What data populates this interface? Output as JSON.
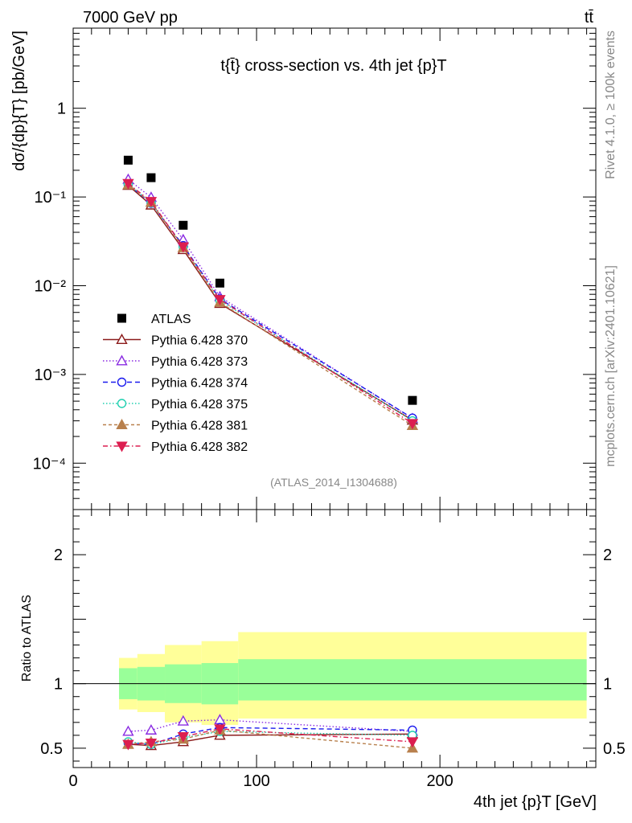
{
  "header": {
    "left_title": "7000 GeV pp",
    "right_title": "tt̄",
    "side_label_top": "Rivet 4.1.0, ≥ 100k events",
    "side_label_bottom": "mcplots.cern.ch [arXiv:2401.10621]"
  },
  "chart_data": {
    "type": "line",
    "title": "t{t̄} cross-section vs. 4th jet {p}T",
    "watermark": "(ATLAS_2014_I1304688)",
    "xlabel": "4th jet {p}T [GeV]",
    "ylabel_main": "dσ/{dp}{T} [pb/GeV]",
    "ylabel_ratio": "Ratio to ATLAS",
    "xlim": [
      0,
      285
    ],
    "ylim_main": [
      3e-05,
      8
    ],
    "ylim_ratio": [
      0.35,
      2.35
    ],
    "x_ticks": [
      {
        "value": 0,
        "label": "0"
      },
      {
        "value": 100,
        "label": "100"
      },
      {
        "value": 200,
        "label": "200"
      }
    ],
    "y_ticks_main": [
      {
        "value": 1,
        "label": "1"
      },
      {
        "value": 0.1,
        "label": "10⁻¹"
      },
      {
        "value": 0.01,
        "label": "10⁻²"
      },
      {
        "value": 0.001,
        "label": "10⁻³"
      },
      {
        "value": 0.0001,
        "label": "10⁻⁴"
      }
    ],
    "y_ticks_ratio": [
      {
        "value": 0.5,
        "label": "0.5"
      },
      {
        "value": 1,
        "label": "1"
      },
      {
        "value": 2,
        "label": "2"
      }
    ],
    "bins": [
      [
        25,
        35
      ],
      [
        35,
        50
      ],
      [
        50,
        70
      ],
      [
        70,
        90
      ],
      [
        90,
        280
      ]
    ],
    "x": [
      30,
      42.5,
      60,
      80,
      185
    ],
    "data": {
      "name": "ATLAS",
      "values": [
        0.26,
        0.165,
        0.048,
        0.0107,
        0.00051
      ]
    },
    "ratio_bands": {
      "stat": [
        [
          0.88,
          1.12
        ],
        [
          0.87,
          1.13
        ],
        [
          0.85,
          1.15
        ],
        [
          0.84,
          1.16
        ],
        [
          0.87,
          1.19
        ]
      ],
      "total": [
        [
          0.8,
          1.2
        ],
        [
          0.78,
          1.23
        ],
        [
          0.7,
          1.3
        ],
        [
          0.68,
          1.33
        ],
        [
          0.73,
          1.4
        ]
      ],
      "inner_color": "#99ff99",
      "outer_color": "#ffff99"
    },
    "series": [
      {
        "name": "Pythia 6.428 370",
        "color": "#8b1a1a",
        "dash": "",
        "marker": "triangle-up-open",
        "values": [
          0.135,
          0.081,
          0.0255,
          0.0063,
          0.000305
        ],
        "ratio": [
          0.53,
          0.52,
          0.55,
          0.6,
          0.61
        ]
      },
      {
        "name": "Pythia 6.428 373",
        "color": "#8a2be2",
        "dash": "1.5,2.5",
        "marker": "triangle-up-open",
        "values": [
          0.158,
          0.099,
          0.033,
          0.0075,
          0.000318
        ],
        "ratio": [
          0.63,
          0.64,
          0.71,
          0.72,
          0.63
        ]
      },
      {
        "name": "Pythia 6.428 374",
        "color": "#1a1aee",
        "dash": "6,4",
        "marker": "circle-open",
        "values": [
          0.138,
          0.085,
          0.0283,
          0.0071,
          0.000322
        ],
        "ratio": [
          0.54,
          0.53,
          0.61,
          0.66,
          0.64
        ]
      },
      {
        "name": "Pythia 6.428 375",
        "color": "#20d0b0",
        "dash": "1.5,2.5",
        "marker": "circle-open",
        "values": [
          0.14,
          0.086,
          0.0272,
          0.0068,
          0.0003
        ],
        "ratio": [
          0.55,
          0.53,
          0.58,
          0.63,
          0.6
        ]
      },
      {
        "name": "Pythia 6.428 381",
        "color": "#b8804d",
        "dash": "4,3",
        "marker": "triangle-up-filled",
        "values": [
          0.137,
          0.087,
          0.0268,
          0.0065,
          0.000265
        ],
        "ratio": [
          0.53,
          0.55,
          0.57,
          0.64,
          0.5
        ]
      },
      {
        "name": "Pythia 6.428 382",
        "color": "#dc1e50",
        "dash": "6,3,1.5,3",
        "marker": "triangle-down-filled",
        "values": [
          0.142,
          0.089,
          0.0275,
          0.007,
          0.00028
        ],
        "ratio": [
          0.53,
          0.54,
          0.59,
          0.65,
          0.55
        ]
      }
    ]
  }
}
